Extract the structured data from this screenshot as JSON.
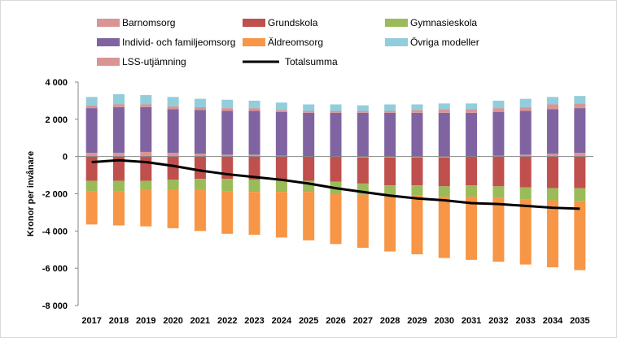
{
  "chart_data": {
    "type": "bar",
    "stacked": true,
    "title": "",
    "xlabel": "",
    "ylabel": "Kronor per invånare",
    "ylim": [
      -8000,
      4000
    ],
    "ytick_step": 2000,
    "ytick_labels": [
      "4 000",
      "2 000",
      "0",
      "-2 000",
      "-4 000",
      "-6 000",
      "-8 000"
    ],
    "grid": false,
    "legend_position": "top",
    "categories": [
      "2017",
      "2018",
      "2019",
      "2020",
      "2021",
      "2022",
      "2023",
      "2024",
      "2025",
      "2026",
      "2027",
      "2028",
      "2029",
      "2030",
      "2031",
      "2032",
      "2033",
      "2034",
      "2035"
    ],
    "series": [
      {
        "name": "Barnomsorg",
        "color": "#D99594",
        "values": [
          200,
          200,
          250,
          200,
          150,
          100,
          100,
          50,
          0,
          0,
          -50,
          -50,
          -50,
          -50,
          0,
          50,
          100,
          150,
          200
        ]
      },
      {
        "name": "Individ- och familjeomsorg",
        "color": "#8064A2",
        "values": [
          2400,
          2450,
          2400,
          2350,
          2350,
          2350,
          2350,
          2350,
          2350,
          2350,
          2350,
          2350,
          2350,
          2350,
          2350,
          2350,
          2350,
          2400,
          2400
        ]
      },
      {
        "name": "LSS-utjämning",
        "color": "#D99594",
        "values": [
          150,
          150,
          150,
          150,
          150,
          150,
          150,
          100,
          100,
          100,
          100,
          100,
          150,
          200,
          200,
          200,
          200,
          250,
          250
        ]
      },
      {
        "name": "Övriga modeller",
        "color": "#92CDDC",
        "values": [
          450,
          550,
          500,
          500,
          450,
          450,
          400,
          400,
          350,
          350,
          300,
          350,
          300,
          300,
          300,
          400,
          450,
          400,
          400
        ]
      },
      {
        "name": "Grundskola",
        "color": "#C0504D",
        "values": [
          -1300,
          -1300,
          -1300,
          -1250,
          -1200,
          -1200,
          -1250,
          -1300,
          -1300,
          -1350,
          -1400,
          -1500,
          -1500,
          -1550,
          -1550,
          -1600,
          -1650,
          -1700,
          -1700
        ]
      },
      {
        "name": "Gymnasieskola",
        "color": "#9BBB59",
        "values": [
          -550,
          -550,
          -500,
          -550,
          -600,
          -650,
          -650,
          -600,
          -600,
          -650,
          -600,
          -600,
          -550,
          -550,
          -600,
          -600,
          -650,
          -650,
          -700
        ]
      },
      {
        "name": "Äldreomsorg",
        "color": "#F79646",
        "values": [
          -1800,
          -1850,
          -1950,
          -2050,
          -2200,
          -2300,
          -2300,
          -2450,
          -2600,
          -2700,
          -2850,
          -2950,
          -3150,
          -3300,
          -3400,
          -3450,
          -3500,
          -3600,
          -3700
        ]
      }
    ],
    "line_series": {
      "name": "Totalsumma",
      "color": "#000000",
      "values": [
        -300,
        -200,
        -300,
        -500,
        -750,
        -950,
        -1100,
        -1250,
        -1450,
        -1700,
        -1900,
        -2100,
        -2250,
        -2350,
        -2500,
        -2550,
        -2650,
        -2750,
        -2800
      ]
    },
    "legend": [
      {
        "name": "Barnomsorg",
        "color": "#D99594",
        "kind": "box"
      },
      {
        "name": "Grundskola",
        "color": "#C0504D",
        "kind": "box"
      },
      {
        "name": "Gymnasieskola",
        "color": "#9BBB59",
        "kind": "box"
      },
      {
        "name": "Individ- och familjeomsorg",
        "color": "#8064A2",
        "kind": "box"
      },
      {
        "name": "Äldreomsorg",
        "color": "#F79646",
        "kind": "box"
      },
      {
        "name": "Övriga modeller",
        "color": "#92CDDC",
        "kind": "box"
      },
      {
        "name": "LSS-utjämning",
        "color": "#D99594",
        "kind": "box"
      },
      {
        "name": "Totalsumma",
        "color": "#000000",
        "kind": "line"
      }
    ]
  }
}
